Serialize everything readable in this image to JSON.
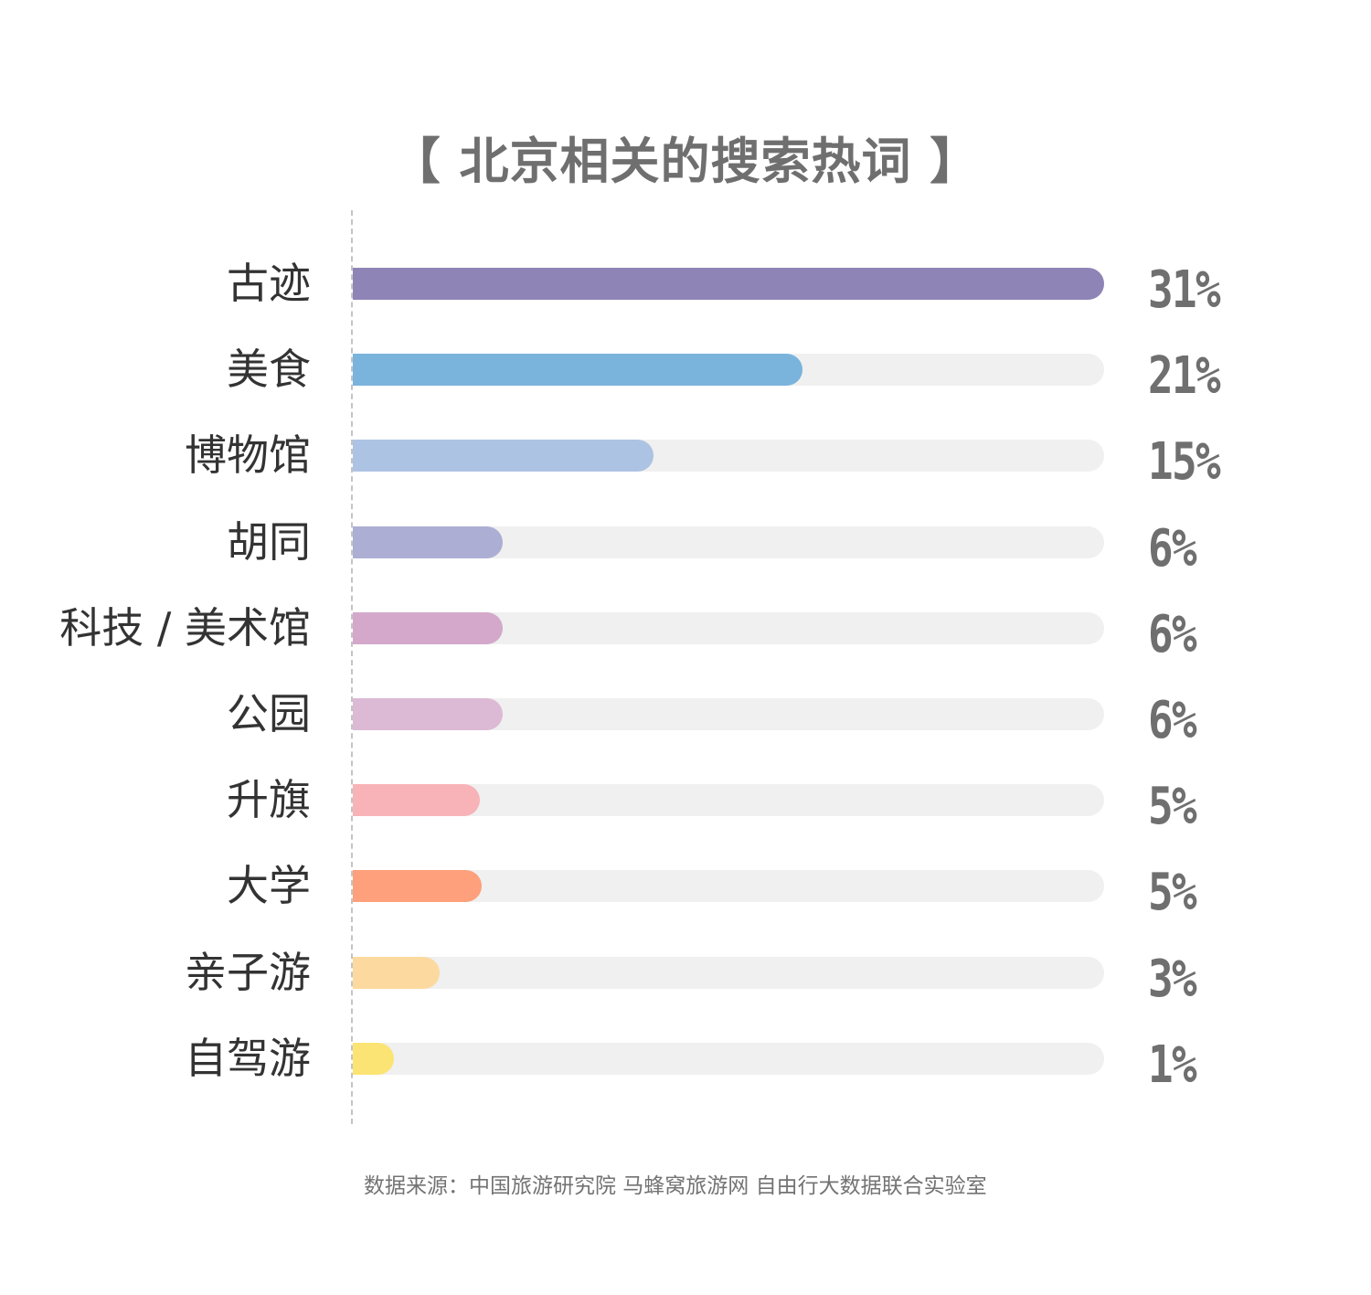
{
  "chart_data": {
    "type": "bar",
    "orientation": "horizontal",
    "title": "【 北京相关的搜索热词 】",
    "categories": [
      "古迹",
      "美食",
      "博物馆",
      "胡同",
      "科技 / 美术馆",
      "公园",
      "升旗",
      "大学",
      "亲子游",
      "自驾游"
    ],
    "values": [
      31,
      21,
      15,
      6,
      6,
      6,
      5,
      5,
      3,
      1
    ],
    "value_labels": [
      "31%",
      "21%",
      "15%",
      "6%",
      "6%",
      "6%",
      "5%",
      "5%",
      "3%",
      "1%"
    ],
    "bar_fill_fractions": [
      1.0,
      0.598,
      0.4,
      0.2,
      0.2,
      0.2,
      0.169,
      0.171,
      0.116,
      0.055
    ],
    "colors": [
      "#8f84b6",
      "#7ab3dc",
      "#adc3e3",
      "#acaed4",
      "#d4a8cb",
      "#dcbad5",
      "#f8b3b8",
      "#fea07b",
      "#fcd99e",
      "#fbe473"
    ],
    "track_color": "#eff0ef",
    "unit": "%",
    "grid": false,
    "legend": "none"
  },
  "footer": {
    "source": "数据来源：中国旅游研究院 马蜂窝旅游网 自由行大数据联合实验室"
  }
}
